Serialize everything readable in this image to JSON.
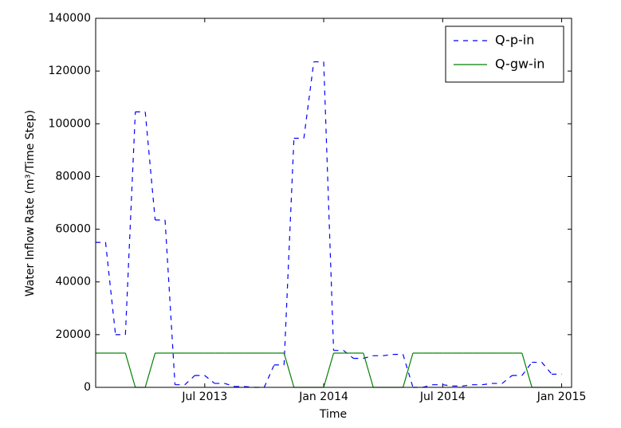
{
  "chart_data": {
    "type": "line",
    "x_label": "Time",
    "y_label": "Water Inflow Rate (m³/Time Step)",
    "x": [
      "2013-02",
      "2013-03",
      "2013-04",
      "2013-05",
      "2013-06",
      "2013-07",
      "2013-08",
      "2013-09",
      "2013-10",
      "2013-11",
      "2013-12",
      "2014-01",
      "2014-02",
      "2014-03",
      "2014-04",
      "2014-05",
      "2014-06",
      "2014-07",
      "2014-08",
      "2014-09",
      "2014-10",
      "2014-11",
      "2014-12",
      "2015-01"
    ],
    "series": [
      {
        "name": "Q-p-in",
        "color": "#0000ff",
        "dashed": true,
        "values": [
          55000,
          20000,
          104500,
          63500,
          1000,
          4500,
          1500,
          300,
          0,
          8500,
          94500,
          123500,
          14000,
          11000,
          12000,
          12500,
          0,
          1000,
          500,
          1000,
          1500,
          4500,
          9500,
          5000
        ]
      },
      {
        "name": "Q-gw-in",
        "color": "#008000",
        "dashed": false,
        "values": [
          13000,
          13000,
          0,
          13000,
          13000,
          13000,
          13000,
          13000,
          13000,
          13000,
          0,
          0,
          13000,
          13000,
          0,
          0,
          13000,
          13000,
          13000,
          13000,
          13000,
          13000,
          0,
          0
        ]
      }
    ],
    "xlim": [
      "2013-01",
      "2015-01"
    ],
    "xticks": [
      {
        "value": "2013-07",
        "label": "Jul 2013"
      },
      {
        "value": "2014-01",
        "label": "Jan 2014"
      },
      {
        "value": "2014-07",
        "label": "Jul 2014"
      },
      {
        "value": "2015-01",
        "label": "Jan 2015"
      }
    ],
    "ylim": [
      0,
      140000
    ],
    "yticks": [
      0,
      20000,
      40000,
      60000,
      80000,
      100000,
      120000,
      140000
    ],
    "legend": "upper right",
    "grid": false
  }
}
